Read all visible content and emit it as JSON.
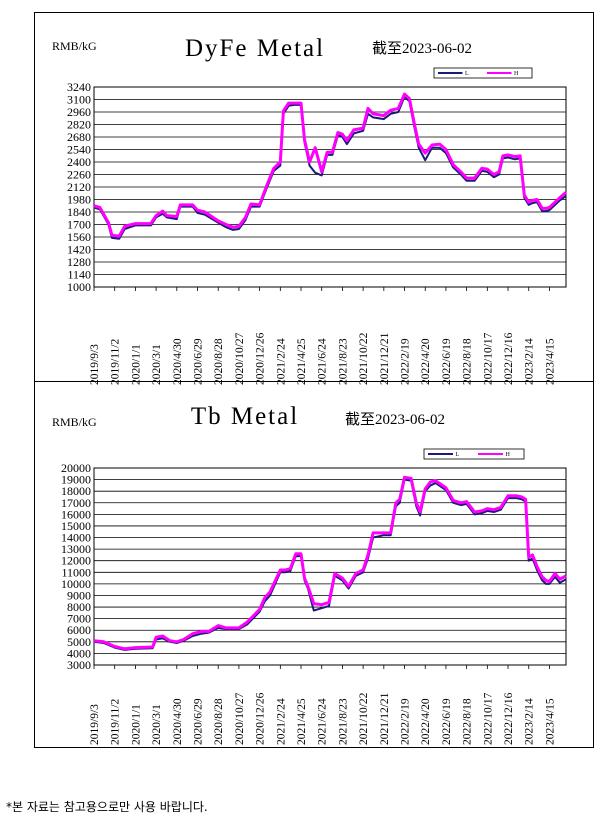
{
  "footnote": "*본 자료는 참고용으로만 사용 바랍니다.",
  "chart_data": [
    {
      "type": "line",
      "title": "DyFe Metal",
      "subtitle": "截至2023-06-02",
      "unit": "RMB/kG",
      "ylim": [
        1000,
        3240
      ],
      "yticks": [
        1000,
        1140,
        1280,
        1420,
        1560,
        1700,
        1840,
        1980,
        2120,
        2260,
        2400,
        2540,
        2680,
        2820,
        2960,
        3100,
        3240
      ],
      "xticks": [
        "2019/9/3",
        "2019/11/2",
        "2020/1/1",
        "2020/3/1",
        "2020/4/30",
        "2020/6/29",
        "2020/8/28",
        "2020/10/27",
        "2020/12/26",
        "2021/2/24",
        "2021/4/25",
        "2021/6/24",
        "2021/8/23",
        "2021/10/22",
        "2021/12/21",
        "2022/2/19",
        "2022/4/20",
        "2022/6/19",
        "2022/8/18",
        "2022/10/17",
        "2022/12/16",
        "2023/2/14",
        "2023/4/15"
      ],
      "x_range": [
        "2019/9/3",
        "2023/6/2"
      ],
      "grid": true,
      "legend": "top-right",
      "series": [
        {
          "name": "L",
          "color": "#1a1a7a",
          "x": [
            "2019/9/3",
            "2019/9/20",
            "2019/10/15",
            "2019/10/25",
            "2019/11/15",
            "2019/12/1",
            "2020/1/1",
            "2020/2/15",
            "2020/3/1",
            "2020/3/20",
            "2020/4/1",
            "2020/4/30",
            "2020/5/10",
            "2020/6/15",
            "2020/6/29",
            "2020/7/20",
            "2020/8/28",
            "2020/9/20",
            "2020/10/10",
            "2020/10/27",
            "2020/11/15",
            "2020/12/1",
            "2020/12/26",
            "2021/1/15",
            "2021/2/5",
            "2021/2/24",
            "2021/3/5",
            "2021/3/20",
            "2021/4/5",
            "2021/4/25",
            "2021/5/5",
            "2021/5/20",
            "2021/6/5",
            "2021/6/24",
            "2021/7/10",
            "2021/7/25",
            "2021/8/10",
            "2021/8/23",
            "2021/9/5",
            "2021/9/25",
            "2021/10/22",
            "2021/11/5",
            "2021/11/20",
            "2021/12/21",
            "2022/1/10",
            "2022/2/1",
            "2022/2/19",
            "2022/3/5",
            "2022/3/20",
            "2022/4/1",
            "2022/4/20",
            "2022/5/10",
            "2022/6/1",
            "2022/6/19",
            "2022/7/10",
            "2022/8/1",
            "2022/8/18",
            "2022/9/10",
            "2022/10/1",
            "2022/10/17",
            "2022/11/5",
            "2022/11/20",
            "2022/12/1",
            "2022/12/16",
            "2023/1/5",
            "2023/1/20",
            "2023/2/1",
            "2023/2/14",
            "2023/2/25",
            "2023/3/10",
            "2023/3/25",
            "2023/4/5",
            "2023/4/15",
            "2023/5/1",
            "2023/5/15",
            "2023/6/2"
          ],
          "values": [
            1890,
            1870,
            1700,
            1550,
            1540,
            1650,
            1690,
            1690,
            1780,
            1820,
            1780,
            1760,
            1900,
            1900,
            1830,
            1810,
            1720,
            1670,
            1640,
            1650,
            1750,
            1900,
            1900,
            2100,
            2300,
            2360,
            2940,
            3030,
            3040,
            3040,
            2620,
            2360,
            2280,
            2250,
            2480,
            2480,
            2700,
            2680,
            2600,
            2720,
            2750,
            2940,
            2900,
            2880,
            2940,
            2960,
            3130,
            3080,
            2780,
            2560,
            2420,
            2560,
            2560,
            2500,
            2340,
            2260,
            2190,
            2190,
            2300,
            2290,
            2230,
            2260,
            2440,
            2450,
            2430,
            2440,
            2000,
            1920,
            1940,
            1950,
            1850,
            1850,
            1860,
            1920,
            1970,
            2020
          ]
        },
        {
          "name": "H",
          "color": "#ff00ff",
          "x": [
            "2019/9/3",
            "2019/9/20",
            "2019/10/15",
            "2019/10/25",
            "2019/11/15",
            "2019/12/1",
            "2020/1/1",
            "2020/2/15",
            "2020/3/1",
            "2020/3/20",
            "2020/4/1",
            "2020/4/30",
            "2020/5/10",
            "2020/6/15",
            "2020/6/29",
            "2020/7/20",
            "2020/8/28",
            "2020/9/20",
            "2020/10/10",
            "2020/10/27",
            "2020/11/15",
            "2020/12/1",
            "2020/12/26",
            "2021/1/15",
            "2021/2/5",
            "2021/2/24",
            "2021/3/5",
            "2021/3/20",
            "2021/4/5",
            "2021/4/25",
            "2021/5/5",
            "2021/5/20",
            "2021/6/5",
            "2021/6/24",
            "2021/7/10",
            "2021/7/25",
            "2021/8/10",
            "2021/8/23",
            "2021/9/5",
            "2021/9/25",
            "2021/10/22",
            "2021/11/5",
            "2021/11/20",
            "2021/12/21",
            "2022/1/10",
            "2022/2/1",
            "2022/2/19",
            "2022/3/5",
            "2022/3/20",
            "2022/4/1",
            "2022/4/20",
            "2022/5/10",
            "2022/6/1",
            "2022/6/19",
            "2022/7/10",
            "2022/8/1",
            "2022/8/18",
            "2022/9/10",
            "2022/10/1",
            "2022/10/17",
            "2022/11/5",
            "2022/11/20",
            "2022/12/1",
            "2022/12/16",
            "2023/1/5",
            "2023/1/20",
            "2023/2/1",
            "2023/2/14",
            "2023/2/25",
            "2023/3/10",
            "2023/3/25",
            "2023/4/5",
            "2023/4/15",
            "2023/5/1",
            "2023/5/15",
            "2023/6/2"
          ],
          "values": [
            1910,
            1890,
            1720,
            1580,
            1570,
            1680,
            1710,
            1710,
            1800,
            1850,
            1800,
            1790,
            1920,
            1920,
            1860,
            1840,
            1740,
            1700,
            1670,
            1680,
            1780,
            1930,
            1920,
            2130,
            2330,
            2400,
            2970,
            3060,
            3060,
            3060,
            2650,
            2400,
            2560,
            2290,
            2510,
            2510,
            2730,
            2710,
            2640,
            2760,
            2780,
            3000,
            2940,
            2920,
            2980,
            3000,
            3160,
            3110,
            2820,
            2600,
            2500,
            2590,
            2600,
            2540,
            2370,
            2290,
            2220,
            2220,
            2330,
            2320,
            2260,
            2290,
            2470,
            2480,
            2460,
            2470,
            2030,
            1950,
            1970,
            1980,
            1880,
            1880,
            1890,
            1950,
            2000,
            2060
          ]
        }
      ]
    },
    {
      "type": "line",
      "title": "Tb Metal",
      "subtitle": "截至2023-06-02",
      "unit": "RMB/kG",
      "ylim": [
        3000,
        20000
      ],
      "yticks": [
        3000,
        4000,
        5000,
        6000,
        7000,
        8000,
        9000,
        10000,
        11000,
        12000,
        13000,
        14000,
        15000,
        16000,
        17000,
        18000,
        19000,
        20000
      ],
      "xticks": [
        "2019/9/3",
        "2019/11/2",
        "2020/1/1",
        "2020/3/1",
        "2020/4/30",
        "2020/6/29",
        "2020/8/28",
        "2020/10/27",
        "2020/12/26",
        "2021/2/24",
        "2021/4/25",
        "2021/6/24",
        "2021/8/23",
        "2021/10/22",
        "2021/12/21",
        "2022/2/19",
        "2022/4/20",
        "2022/6/19",
        "2022/8/18",
        "2022/10/17",
        "2022/12/16",
        "2023/2/14",
        "2023/4/15"
      ],
      "x_range": [
        "2019/9/3",
        "2023/6/2"
      ],
      "grid": true,
      "legend": "top-right",
      "series": [
        {
          "name": "L",
          "color": "#1a1a7a",
          "x": [
            "2019/9/3",
            "2019/10/1",
            "2019/11/2",
            "2019/12/1",
            "2020/1/1",
            "2020/2/20",
            "2020/3/1",
            "2020/3/20",
            "2020/4/10",
            "2020/4/30",
            "2020/5/20",
            "2020/6/15",
            "2020/7/10",
            "2020/8/1",
            "2020/8/28",
            "2020/9/20",
            "2020/10/27",
            "2020/11/20",
            "2020/12/26",
            "2021/1/10",
            "2021/1/25",
            "2021/2/24",
            "2021/3/10",
            "2021/3/25",
            "2021/4/10",
            "2021/4/25",
            "2021/5/5",
            "2021/5/15",
            "2021/6/1",
            "2021/6/24",
            "2021/7/15",
            "2021/8/1",
            "2021/8/23",
            "2021/9/10",
            "2021/10/1",
            "2021/10/22",
            "2021/11/5",
            "2021/11/20",
            "2021/12/21",
            "2022/1/10",
            "2022/1/25",
            "2022/2/5",
            "2022/2/19",
            "2022/3/10",
            "2022/3/25",
            "2022/4/5",
            "2022/4/20",
            "2022/5/5",
            "2022/5/20",
            "2022/6/19",
            "2022/7/10",
            "2022/8/1",
            "2022/8/18",
            "2022/9/10",
            "2022/10/1",
            "2022/10/17",
            "2022/11/5",
            "2022/11/25",
            "2022/12/16",
            "2023/1/10",
            "2023/1/25",
            "2023/2/5",
            "2023/2/14",
            "2023/2/25",
            "2023/3/10",
            "2023/3/25",
            "2023/4/5",
            "2023/4/15",
            "2023/5/1",
            "2023/5/15",
            "2023/6/2"
          ],
          "values": [
            5000,
            4900,
            4500,
            4300,
            4400,
            4450,
            5200,
            5300,
            5000,
            4900,
            5100,
            5500,
            5700,
            5800,
            6200,
            6100,
            6100,
            6500,
            7600,
            8500,
            9000,
            11000,
            11000,
            11100,
            12400,
            12400,
            10300,
            9600,
            7700,
            7900,
            8100,
            10700,
            10300,
            9600,
            10700,
            11000,
            12200,
            14000,
            14200,
            14200,
            16700,
            17000,
            19000,
            18900,
            16700,
            15900,
            18000,
            18500,
            18700,
            18100,
            17000,
            16800,
            16900,
            16000,
            16100,
            16300,
            16200,
            16400,
            17400,
            17400,
            17300,
            17100,
            12000,
            12200,
            11200,
            10300,
            10000,
            10000,
            10600,
            10100,
            10400
          ]
        },
        {
          "name": "H",
          "color": "#ff00ff",
          "x": [
            "2019/9/3",
            "2019/10/1",
            "2019/11/2",
            "2019/12/1",
            "2020/1/1",
            "2020/2/20",
            "2020/3/1",
            "2020/3/20",
            "2020/4/10",
            "2020/4/30",
            "2020/5/20",
            "2020/6/15",
            "2020/7/10",
            "2020/8/1",
            "2020/8/28",
            "2020/9/20",
            "2020/10/27",
            "2020/11/20",
            "2020/12/26",
            "2021/1/10",
            "2021/1/25",
            "2021/2/24",
            "2021/3/10",
            "2021/3/25",
            "2021/4/10",
            "2021/4/25",
            "2021/5/5",
            "2021/5/15",
            "2021/6/1",
            "2021/6/24",
            "2021/7/15",
            "2021/8/1",
            "2021/8/23",
            "2021/9/10",
            "2021/10/1",
            "2021/10/22",
            "2021/11/5",
            "2021/11/20",
            "2021/12/21",
            "2022/1/10",
            "2022/1/25",
            "2022/2/5",
            "2022/2/19",
            "2022/3/10",
            "2022/3/25",
            "2022/4/5",
            "2022/4/20",
            "2022/5/5",
            "2022/5/20",
            "2022/6/19",
            "2022/7/10",
            "2022/8/1",
            "2022/8/18",
            "2022/9/10",
            "2022/10/1",
            "2022/10/17",
            "2022/11/5",
            "2022/11/25",
            "2022/12/16",
            "2023/1/10",
            "2023/1/25",
            "2023/2/5",
            "2023/2/14",
            "2023/2/25",
            "2023/3/10",
            "2023/3/25",
            "2023/4/5",
            "2023/4/15",
            "2023/5/1",
            "2023/5/15",
            "2023/6/2"
          ],
          "values": [
            5100,
            5000,
            4600,
            4400,
            4500,
            4550,
            5400,
            5500,
            5100,
            5000,
            5200,
            5700,
            5900,
            5900,
            6400,
            6200,
            6200,
            6700,
            7800,
            8800,
            9300,
            11200,
            11200,
            11300,
            12600,
            12600,
            10500,
            9800,
            8300,
            8200,
            8400,
            10900,
            10500,
            9800,
            10900,
            11200,
            12500,
            14400,
            14400,
            14400,
            17000,
            17300,
            19200,
            19100,
            17000,
            16200,
            18200,
            18800,
            18900,
            18300,
            17200,
            17000,
            17100,
            16200,
            16300,
            16500,
            16400,
            16600,
            17600,
            17600,
            17500,
            17300,
            12300,
            12500,
            11500,
            10600,
            10300,
            10200,
            10900,
            10400,
            10700
          ]
        }
      ]
    }
  ]
}
